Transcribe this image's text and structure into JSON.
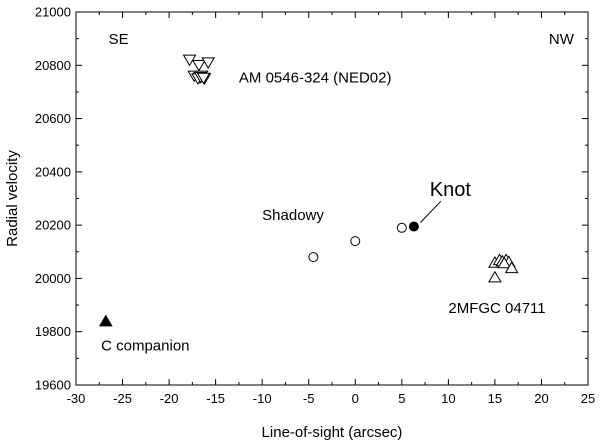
{
  "chart_data": {
    "type": "scatter",
    "xlabel": "Line-of-sight  (arcsec)",
    "ylabel": "Radial  velocity",
    "xlim": [
      -30,
      25
    ],
    "ylim": [
      19600,
      21000
    ],
    "xticks": [
      -30,
      -25,
      -20,
      -15,
      -10,
      -5,
      0,
      5,
      10,
      15,
      20,
      25
    ],
    "yticks": [
      19600,
      19800,
      20000,
      20200,
      20400,
      20600,
      20800,
      21000
    ],
    "grid": false,
    "groups": [
      {
        "marker": "triangle-down-open",
        "points": [
          [
            -17.8,
            20820
          ],
          [
            -16.8,
            20800
          ],
          [
            -15.8,
            20810
          ],
          [
            -17.3,
            20760
          ],
          [
            -16.7,
            20755
          ],
          [
            -16.2,
            20750
          ],
          [
            -16.9,
            20750
          ],
          [
            -16.5,
            20760
          ]
        ]
      },
      {
        "marker": "triangle-down-open",
        "points": [
          [
            -16.6,
            20755
          ],
          [
            -16.3,
            20752
          ]
        ]
      },
      {
        "marker": "circle-open",
        "points": [
          [
            -4.5,
            20080
          ],
          [
            0,
            20140
          ],
          [
            5.0,
            20190
          ]
        ]
      },
      {
        "marker": "circle-filled",
        "points": [
          [
            6.3,
            20195
          ]
        ]
      },
      {
        "marker": "triangle-up-open",
        "points": [
          [
            15.0,
            20060
          ],
          [
            15.5,
            20070
          ],
          [
            15.8,
            20065
          ],
          [
            16.2,
            20070
          ],
          [
            16.5,
            20062
          ],
          [
            16.0,
            20058
          ],
          [
            16.8,
            20040
          ],
          [
            15.0,
            20005
          ]
        ]
      },
      {
        "marker": "triangle-up-filled",
        "points": [
          [
            -26.8,
            19840
          ]
        ]
      }
    ],
    "annotations": [
      {
        "text": "SE",
        "x": -26.5,
        "y": 20880,
        "size": 15
      },
      {
        "text": "NW",
        "x": 20.8,
        "y": 20880,
        "size": 15
      },
      {
        "text": "AM 0546-324 (NED02)",
        "x": -12.5,
        "y": 20735,
        "size": 15
      },
      {
        "text": "Shadowy",
        "x": -10,
        "y": 20220,
        "size": 15
      },
      {
        "text": "Knot",
        "x": 8,
        "y": 20310,
        "size": 20
      },
      {
        "text": "2MFGC 04711",
        "x": 10,
        "y": 19870,
        "size": 15
      },
      {
        "text": "C companion",
        "x": -27.3,
        "y": 19730,
        "size": 15
      }
    ],
    "pointer": {
      "from": [
        9.2,
        20290
      ],
      "to": [
        7.0,
        20210
      ]
    }
  }
}
